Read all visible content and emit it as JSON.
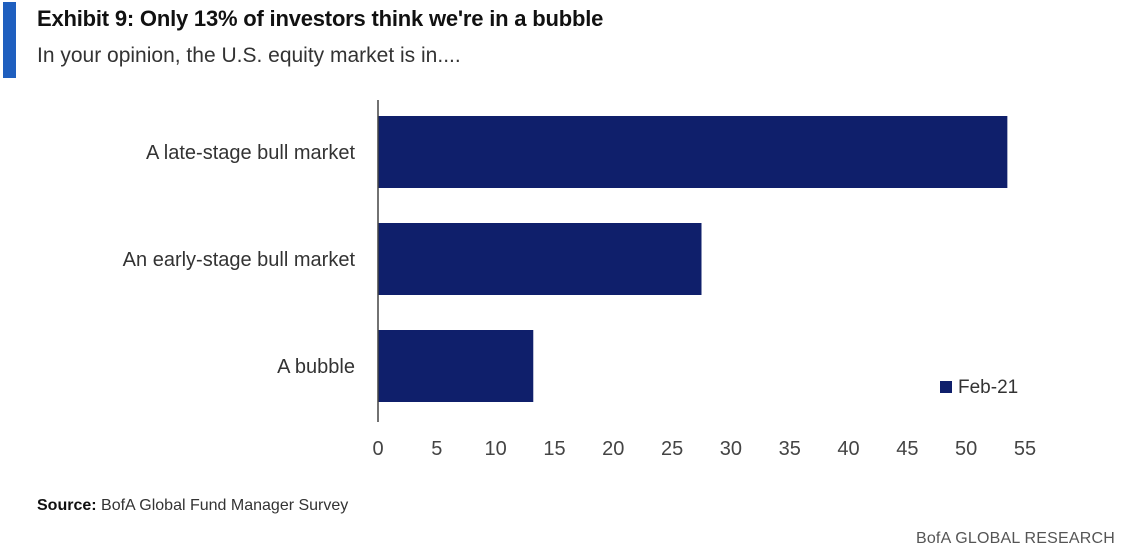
{
  "header": {
    "title": "Exhibit 9: Only 13% of investors think we're in a bubble",
    "subtitle": "In your opinion, the U.S. equity market is in...."
  },
  "footer": {
    "source_label": "Source:",
    "source_text": "BofA Global Fund Manager Survey",
    "brand": "BofA GLOBAL RESEARCH"
  },
  "colors": {
    "bar": "#0f1f6b",
    "accent": "#1f5fbf",
    "axis": "#444444"
  },
  "chart_data": {
    "type": "bar",
    "orientation": "horizontal",
    "categories": [
      "A late-stage bull market",
      "An early-stage bull market",
      "A bubble"
    ],
    "series": [
      {
        "name": "Feb-21",
        "values": [
          53.5,
          27.5,
          13.2
        ]
      }
    ],
    "xlim": [
      0,
      55
    ],
    "xticks": [
      0,
      5,
      10,
      15,
      20,
      25,
      30,
      35,
      40,
      45,
      50,
      55
    ],
    "legend_position": "bottom-right",
    "grid": false
  }
}
